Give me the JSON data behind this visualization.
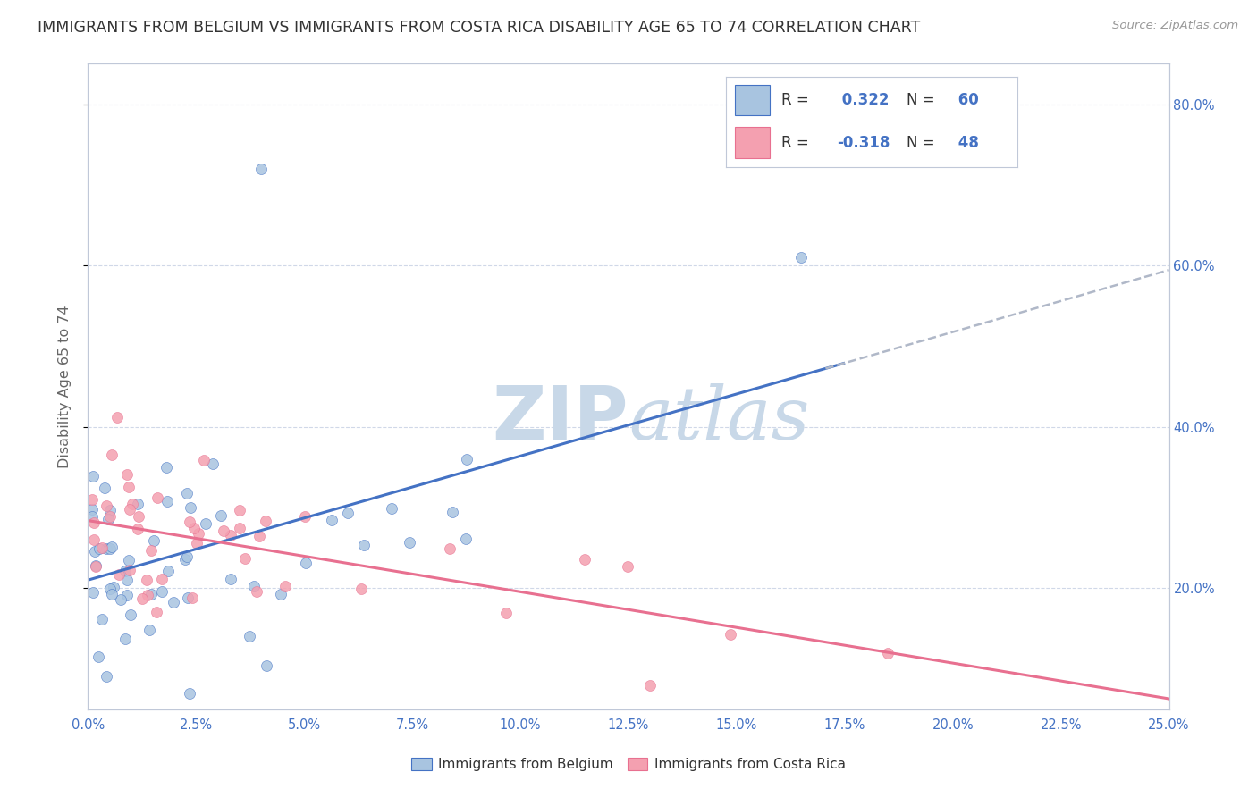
{
  "title": "IMMIGRANTS FROM BELGIUM VS IMMIGRANTS FROM COSTA RICA DISABILITY AGE 65 TO 74 CORRELATION CHART",
  "source": "Source: ZipAtlas.com",
  "ylabel": "Disability Age 65 to 74",
  "y_ticks": [
    0.2,
    0.4,
    0.6,
    0.8
  ],
  "y_tick_labels": [
    "20.0%",
    "40.0%",
    "60.0%",
    "80.0%"
  ],
  "xlim": [
    0.0,
    0.25
  ],
  "ylim": [
    0.05,
    0.85
  ],
  "blue_R": 0.322,
  "blue_N": 60,
  "pink_R": -0.318,
  "pink_N": 48,
  "belgium_color": "#a8c4e0",
  "costa_rica_color": "#f4a0b0",
  "belgium_label": "Immigrants from Belgium",
  "costa_rica_label": "Immigrants from Costa Rica",
  "blue_line_color": "#4472c4",
  "pink_line_color": "#e87090",
  "dashed_line_color": "#b0b8c8",
  "watermark_color": "#c8d8e8",
  "background_color": "#ffffff",
  "legend_color": "#4472c4",
  "tick_color": "#4472c4",
  "grid_color": "#d0d8e8",
  "spine_color": "#c0c8d8"
}
